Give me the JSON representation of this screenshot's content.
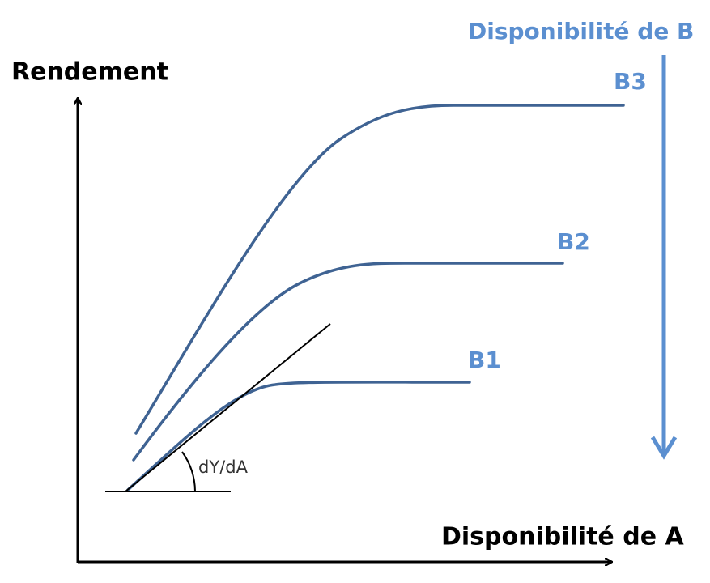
{
  "y_axis_label": "Rendement",
  "x_axis_label": "Disponibilité de A",
  "b_axis_label": "Disponibilité de B",
  "curves": [
    {
      "label": "B3"
    },
    {
      "label": "B2"
    },
    {
      "label": "B1"
    }
  ],
  "slope_label": "dY/dA"
}
